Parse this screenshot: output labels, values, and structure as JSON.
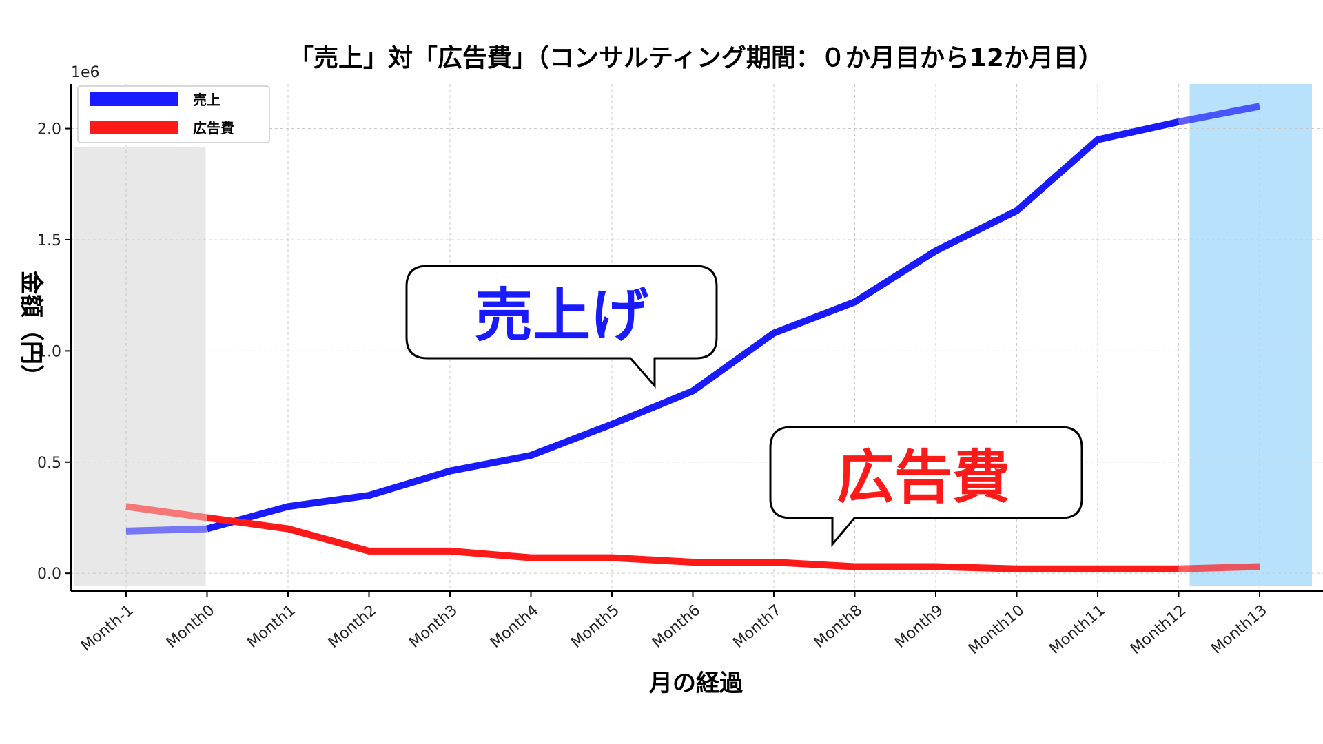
{
  "chart_data": {
    "type": "line",
    "title": "「売上」対「広告費」（コンサルティング期間：０か月目から12か月目）",
    "xlabel": "月の経過",
    "ylabel": "金額（円）",
    "y_offset_label": "1e6",
    "categories": [
      "Month-1",
      "Month0",
      "Month1",
      "Month2",
      "Month3",
      "Month4",
      "Month5",
      "Month6",
      "Month7",
      "Month8",
      "Month9",
      "Month10",
      "Month11",
      "Month12",
      "Month13"
    ],
    "series": [
      {
        "name": "売上",
        "color": "#1a1aff",
        "values": [
          190000,
          200000,
          300000,
          350000,
          460000,
          530000,
          670000,
          820000,
          1080000,
          1220000,
          1450000,
          1630000,
          1950000,
          2030000,
          2100000
        ]
      },
      {
        "name": "広告費",
        "color": "#ff1a1a",
        "values": [
          300000,
          250000,
          200000,
          100000,
          100000,
          70000,
          70000,
          50000,
          50000,
          30000,
          30000,
          20000,
          20000,
          20000,
          30000
        ]
      }
    ],
    "ylim": [
      -80000,
      2200000
    ],
    "yticks": [
      0,
      500000,
      1000000,
      1500000,
      2000000
    ],
    "ytick_labels": [
      "0.0",
      "0.5",
      "1.0",
      "1.5",
      "2.0"
    ],
    "grid": true,
    "legend_position": "top-left",
    "shaded_regions": [
      {
        "from": "Month-1",
        "to": "Month0",
        "color": "#e8e8e8"
      },
      {
        "from": "Month12",
        "to": "Month13",
        "color": "#b8e2fb"
      }
    ],
    "annotations": [
      {
        "text": "売上げ",
        "color": "#1a1aff"
      },
      {
        "text": "広告費",
        "color": "#ff1a1a"
      }
    ]
  }
}
